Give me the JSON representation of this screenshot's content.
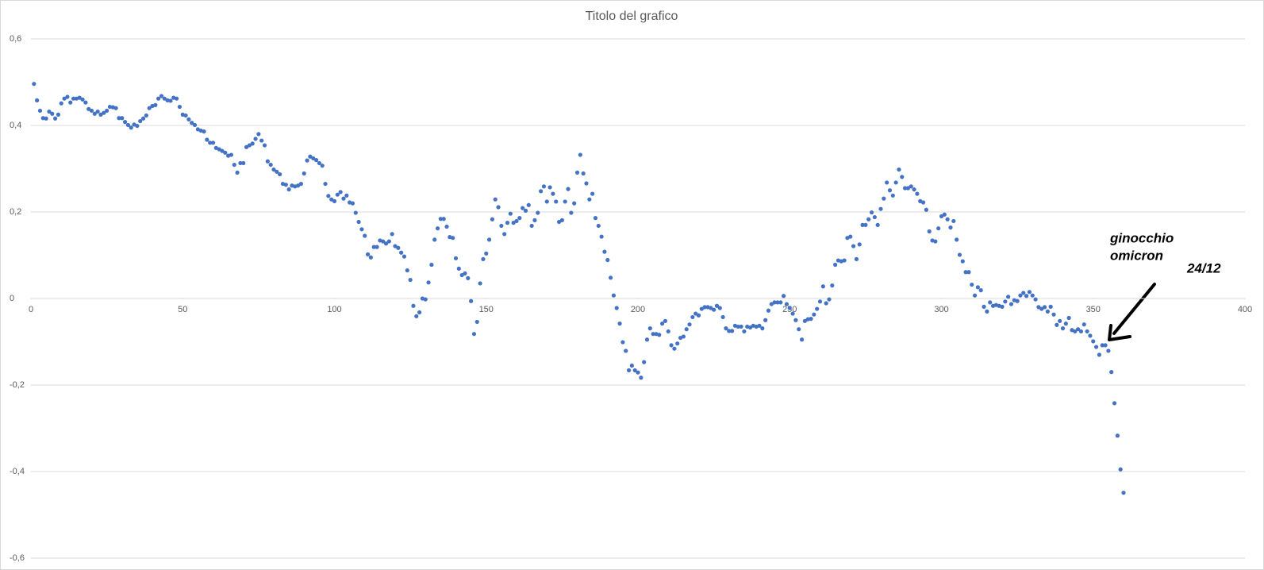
{
  "chart_data": {
    "type": "scatter",
    "title": "Titolo del grafico",
    "x": [
      1,
      2,
      3,
      4,
      5,
      6,
      7,
      8,
      9,
      10,
      11,
      12,
      13,
      14,
      15,
      16,
      17,
      18,
      19,
      20,
      21,
      22,
      23,
      24,
      25,
      26,
      27,
      28,
      29,
      30,
      31,
      32,
      33,
      34,
      35,
      36,
      37,
      38,
      39,
      40,
      41,
      42,
      43,
      44,
      45,
      46,
      47,
      48,
      49,
      50,
      51,
      52,
      53,
      54,
      55,
      56,
      57,
      58,
      59,
      60,
      61,
      62,
      63,
      64,
      65,
      66,
      67,
      68,
      69,
      70,
      71,
      72,
      73,
      74,
      75,
      76,
      77,
      78,
      79,
      80,
      81,
      82,
      83,
      84,
      85,
      86,
      87,
      88,
      89,
      90,
      91,
      92,
      93,
      94,
      95,
      96,
      97,
      98,
      99,
      100,
      101,
      102,
      103,
      104,
      105,
      106,
      107,
      108,
      109,
      110,
      111,
      112,
      113,
      114,
      115,
      116,
      117,
      118,
      119,
      120,
      121,
      122,
      123,
      124,
      125,
      126,
      127,
      128,
      129,
      130,
      131,
      132,
      133,
      134,
      135,
      136,
      137,
      138,
      139,
      140,
      141,
      142,
      143,
      144,
      145,
      146,
      147,
      148,
      149,
      150,
      151,
      152,
      153,
      154,
      155,
      156,
      157,
      158,
      159,
      160,
      161,
      162,
      163,
      164,
      165,
      166,
      167,
      168,
      169,
      170,
      171,
      172,
      173,
      174,
      175,
      176,
      177,
      178,
      179,
      180,
      181,
      182,
      183,
      184,
      185,
      186,
      187,
      188,
      189,
      190,
      191,
      192,
      193,
      194,
      195,
      196,
      197,
      198,
      199,
      200,
      201,
      202,
      203,
      204,
      205,
      206,
      207,
      208,
      209,
      210,
      211,
      212,
      213,
      214,
      215,
      216,
      217,
      218,
      219,
      220,
      221,
      222,
      223,
      224,
      225,
      226,
      227,
      228,
      229,
      230,
      231,
      232,
      233,
      234,
      235,
      236,
      237,
      238,
      239,
      240,
      241,
      242,
      243,
      244,
      245,
      246,
      247,
      248,
      249,
      250,
      251,
      252,
      253,
      254,
      255,
      256,
      257,
      258,
      259,
      260,
      261,
      262,
      263,
      264,
      265,
      266,
      267,
      268,
      269,
      270,
      271,
      272,
      273,
      274,
      275,
      276,
      277,
      278,
      279,
      280,
      281,
      282,
      283,
      284,
      285,
      286,
      287,
      288,
      289,
      290,
      291,
      292,
      293,
      294,
      295,
      296,
      297,
      298,
      299,
      300,
      301,
      302,
      303,
      304,
      305,
      306,
      307,
      308,
      309,
      310,
      311,
      312,
      313,
      314,
      315,
      316,
      317,
      318,
      319,
      320,
      321,
      322,
      323,
      324,
      325,
      326,
      327,
      328,
      329,
      330,
      331,
      332,
      333,
      334,
      335,
      336,
      337,
      338,
      339,
      340,
      341,
      342,
      343,
      344,
      345,
      346,
      347,
      348,
      349,
      350,
      351,
      352,
      353,
      354,
      355,
      356,
      357,
      358,
      359,
      360
    ],
    "values": [
      0.496,
      0.458,
      0.434,
      0.417,
      0.416,
      0.432,
      0.427,
      0.416,
      0.425,
      0.451,
      0.462,
      0.466,
      0.453,
      0.462,
      0.462,
      0.464,
      0.46,
      0.453,
      0.438,
      0.434,
      0.427,
      0.432,
      0.425,
      0.429,
      0.434,
      0.443,
      0.442,
      0.44,
      0.417,
      0.417,
      0.408,
      0.401,
      0.395,
      0.402,
      0.399,
      0.41,
      0.416,
      0.423,
      0.44,
      0.445,
      0.447,
      0.462,
      0.468,
      0.462,
      0.458,
      0.457,
      0.464,
      0.462,
      0.443,
      0.425,
      0.423,
      0.414,
      0.406,
      0.401,
      0.391,
      0.388,
      0.386,
      0.367,
      0.36,
      0.36,
      0.348,
      0.345,
      0.341,
      0.337,
      0.33,
      0.332,
      0.309,
      0.291,
      0.313,
      0.313,
      0.35,
      0.354,
      0.358,
      0.369,
      0.38,
      0.365,
      0.354,
      0.317,
      0.309,
      0.298,
      0.293,
      0.287,
      0.265,
      0.263,
      0.252,
      0.261,
      0.259,
      0.261,
      0.265,
      0.289,
      0.319,
      0.328,
      0.324,
      0.32,
      0.313,
      0.307,
      0.265,
      0.237,
      0.229,
      0.225,
      0.24,
      0.246,
      0.231,
      0.238,
      0.222,
      0.22,
      0.198,
      0.177,
      0.16,
      0.145,
      0.102,
      0.095,
      0.119,
      0.119,
      0.134,
      0.132,
      0.127,
      0.132,
      0.149,
      0.121,
      0.117,
      0.106,
      0.097,
      0.065,
      0.043,
      -0.017,
      -0.041,
      -0.032,
      0,
      -0.002,
      0.037,
      0.078,
      0.136,
      0.162,
      0.184,
      0.184,
      0.166,
      0.142,
      0.14,
      0.093,
      0.069,
      0.054,
      0.058,
      0.047,
      -0.006,
      -0.082,
      -0.054,
      0.035,
      0.091,
      0.104,
      0.136,
      0.183,
      0.229,
      0.211,
      0.168,
      0.149,
      0.175,
      0.196,
      0.175,
      0.179,
      0.186,
      0.209,
      0.203,
      0.216,
      0.168,
      0.181,
      0.198,
      0.248,
      0.259,
      0.224,
      0.257,
      0.242,
      0.224,
      0.177,
      0.181,
      0.224,
      0.253,
      0.198,
      0.22,
      0.291,
      0.332,
      0.289,
      0.266,
      0.229,
      0.242,
      0.186,
      0.168,
      0.143,
      0.108,
      0.089,
      0.048,
      0.007,
      -0.022,
      -0.058,
      -0.101,
      -0.121,
      -0.166,
      -0.155,
      -0.166,
      -0.171,
      -0.183,
      -0.147,
      -0.095,
      -0.069,
      -0.082,
      -0.082,
      -0.084,
      -0.058,
      -0.052,
      -0.076,
      -0.108,
      -0.116,
      -0.104,
      -0.091,
      -0.088,
      -0.071,
      -0.06,
      -0.043,
      -0.035,
      -0.039,
      -0.024,
      -0.02,
      -0.02,
      -0.022,
      -0.026,
      -0.017,
      -0.022,
      -0.043,
      -0.069,
      -0.075,
      -0.075,
      -0.063,
      -0.065,
      -0.065,
      -0.076,
      -0.065,
      -0.067,
      -0.063,
      -0.065,
      -0.063,
      -0.069,
      -0.05,
      -0.028,
      -0.013,
      -0.009,
      -0.009,
      -0.009,
      0.006,
      -0.013,
      -0.022,
      -0.035,
      -0.05,
      -0.071,
      -0.095,
      -0.052,
      -0.048,
      -0.047,
      -0.037,
      -0.024,
      -0.007,
      0.028,
      -0.011,
      -0.002,
      0.03,
      0.078,
      0.088,
      0.086,
      0.088,
      0.14,
      0.143,
      0.121,
      0.091,
      0.125,
      0.17,
      0.17,
      0.183,
      0.199,
      0.188,
      0.17,
      0.207,
      0.231,
      0.268,
      0.25,
      0.238,
      0.268,
      0.298,
      0.281,
      0.255,
      0.255,
      0.259,
      0.252,
      0.242,
      0.225,
      0.222,
      0.205,
      0.155,
      0.134,
      0.132,
      0.162,
      0.19,
      0.194,
      0.183,
      0.164,
      0.179,
      0.136,
      0.101,
      0.086,
      0.061,
      0.061,
      0.032,
      0.007,
      0.026,
      0.019,
      -0.019,
      -0.03,
      -0.009,
      -0.017,
      -0.015,
      -0.017,
      -0.019,
      -0.007,
      0.004,
      -0.013,
      -0.004,
      -0.006,
      0.007,
      0.013,
      0.006,
      0.015,
      0.007,
      -0.002,
      -0.02,
      -0.024,
      -0.02,
      -0.03,
      -0.019,
      -0.037,
      -0.061,
      -0.052,
      -0.069,
      -0.058,
      -0.045,
      -0.073,
      -0.076,
      -0.071,
      -0.076,
      -0.06,
      -0.076,
      -0.086,
      -0.099,
      -0.112,
      -0.13,
      -0.108,
      -0.108,
      -0.121,
      -0.17,
      -0.242,
      -0.317,
      -0.395,
      -0.449
    ],
    "color": "#4472c4",
    "xlim": [
      0,
      400
    ],
    "xticks": [
      0,
      50,
      100,
      150,
      200,
      250,
      300,
      350,
      400
    ],
    "ylim": [
      -0.6,
      0.6
    ],
    "yticks": [
      {
        "value": -0.6,
        "label": "-0,6"
      },
      {
        "value": -0.4,
        "label": "-0,4"
      },
      {
        "value": -0.2,
        "label": "-0,2"
      },
      0,
      {
        "value": 0.2,
        "label": "0,2"
      },
      {
        "value": 0.4,
        "label": "0,4"
      },
      {
        "value": 0.6,
        "label": "0,6"
      }
    ],
    "grid": true,
    "annotations": [
      "ginocchio",
      "omicron",
      "24/12"
    ]
  }
}
